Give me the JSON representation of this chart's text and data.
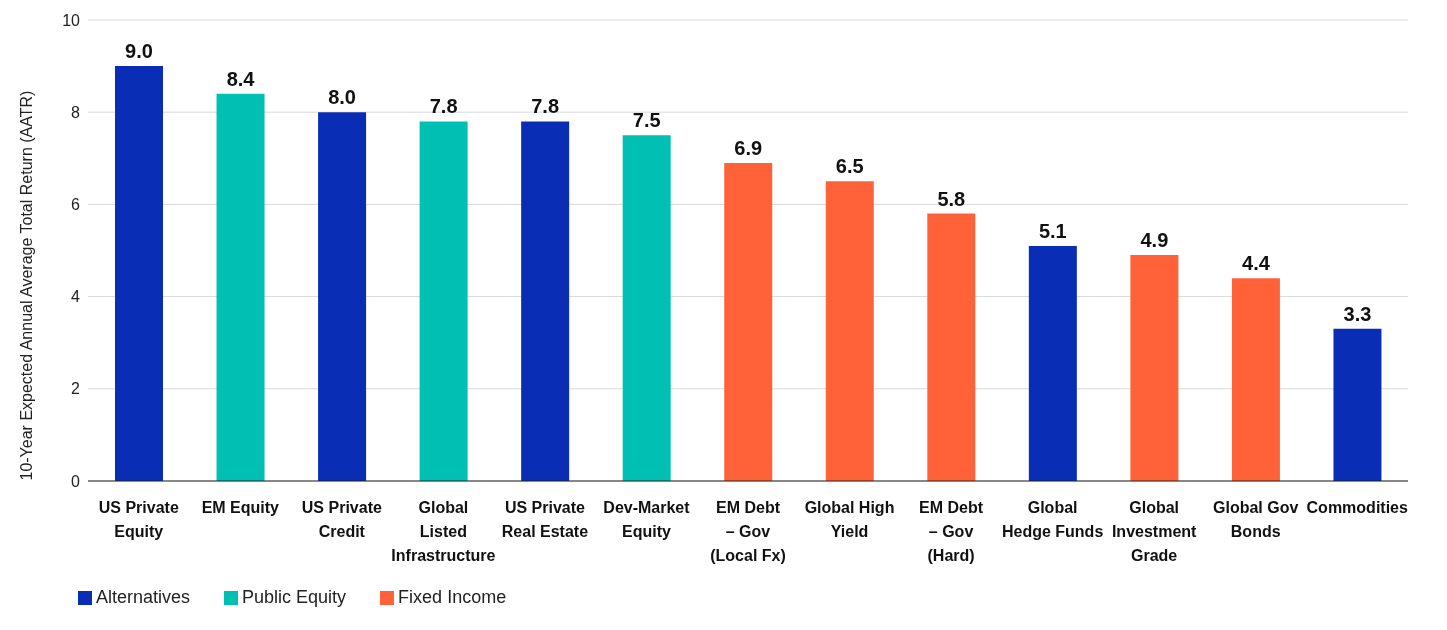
{
  "chart_data": {
    "type": "bar",
    "ylabel": "10-Year Expected Annual Average Total Return (AATR)",
    "categories": [
      "US Private Equity",
      "EM Equity",
      "US Private Credit",
      "Global Listed Infrastructure",
      "US Private Real Estate",
      "Dev-Market Equity",
      "EM Debt – Gov (Local Fx)",
      "Global High Yield",
      "EM Debt – Gov (Hard)",
      "Global Hedge Funds",
      "Global Investment Grade",
      "Global Gov Bonds",
      "Commodities"
    ],
    "series": [
      {
        "name": "Alternatives",
        "color": "#0a2db5",
        "values": [
          9.0,
          null,
          8.0,
          null,
          7.8,
          null,
          null,
          null,
          null,
          5.1,
          null,
          null,
          3.3
        ],
        "value_labels": [
          "9.0",
          null,
          "8.0",
          null,
          "7.8",
          null,
          null,
          null,
          null,
          "5.1",
          null,
          null,
          "3.3"
        ]
      },
      {
        "name": "Public Equity",
        "color": "#00bfb3",
        "values": [
          null,
          8.4,
          null,
          7.8,
          null,
          7.5,
          null,
          null,
          null,
          null,
          null,
          null,
          null
        ],
        "value_labels": [
          null,
          "8.4",
          null,
          "7.8",
          null,
          "7.5",
          null,
          null,
          null,
          null,
          null,
          null,
          null
        ]
      },
      {
        "name": "Fixed Income",
        "color": "#ff6139",
        "values": [
          null,
          null,
          null,
          null,
          null,
          null,
          6.9,
          6.5,
          5.8,
          null,
          4.9,
          4.4,
          null
        ],
        "value_labels": [
          null,
          null,
          null,
          null,
          null,
          null,
          "6.9",
          "6.5",
          "5.8",
          null,
          "4.9",
          "4.4",
          null
        ]
      }
    ],
    "stacked": true,
    "ylim": [
      0,
      10
    ],
    "yticks": [
      0,
      2,
      4,
      6,
      8,
      10
    ],
    "grid": "y",
    "legend": "bottom left"
  }
}
